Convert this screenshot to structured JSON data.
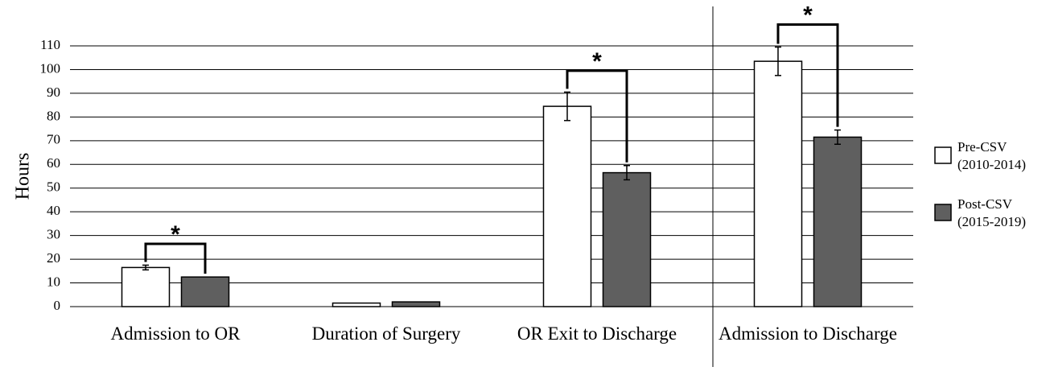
{
  "chart_data": {
    "type": "bar",
    "y_label": "Hours",
    "categories": [
      "Admission to OR",
      "Duration of Surgery",
      "OR Exit to Discharge",
      "Admission to Discharge"
    ],
    "series": [
      {
        "name": "Pre-CSV (2010-2014)",
        "color": "#ffffff",
        "values": [
          16.5,
          1.5,
          84.5,
          103.5
        ],
        "errors": [
          1,
          null,
          6,
          6
        ]
      },
      {
        "name": "Post-CSV (2015-2019)",
        "color": "#5f5f5f",
        "values": [
          12.5,
          2,
          56.5,
          71.5
        ],
        "errors": [
          null,
          null,
          3,
          3
        ]
      }
    ],
    "annotations": [
      {
        "text": "*",
        "category": 0,
        "y": 26.5
      },
      {
        "text": "*",
        "category": 2,
        "y": 99.5
      },
      {
        "text": "*",
        "category": 3,
        "y": 119
      }
    ],
    "ylim": [
      0,
      110
    ],
    "yticks": [
      0,
      10,
      20,
      30,
      40,
      50,
      60,
      70,
      80,
      90,
      100,
      110
    ],
    "grid": true,
    "legend": "right"
  }
}
